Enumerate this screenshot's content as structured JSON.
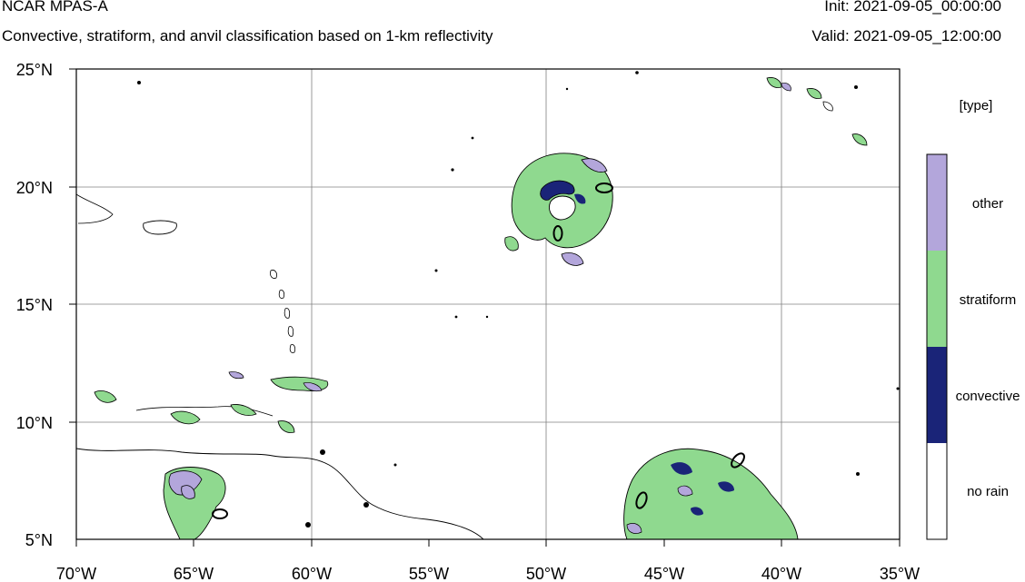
{
  "header": {
    "model": "NCAR MPAS-A",
    "description": "Convective, stratiform, and anvil classification based on 1-km reflectivity",
    "init_label": "Init: 2021-09-05_00:00:00",
    "valid_label": "Valid: 2021-09-05_12:00:00"
  },
  "axes": {
    "lon_ticks": [
      "70°W",
      "65°W",
      "60°W",
      "55°W",
      "50°W",
      "45°W",
      "40°W",
      "35°W"
    ],
    "lat_ticks": [
      "25°N",
      "20°N",
      "15°N",
      "10°N",
      "5°N"
    ]
  },
  "legend": {
    "title": "[type]",
    "categories": [
      {
        "label": "other",
        "color": "#b3a6db"
      },
      {
        "label": "stratiform",
        "color": "#8fd98f"
      },
      {
        "label": "convective",
        "color": "#1a2478"
      },
      {
        "label": "no rain",
        "color": "#ffffff"
      }
    ]
  },
  "colors": {
    "other": "#b3a6db",
    "stratiform": "#8fd98f",
    "convective": "#1a2478"
  }
}
